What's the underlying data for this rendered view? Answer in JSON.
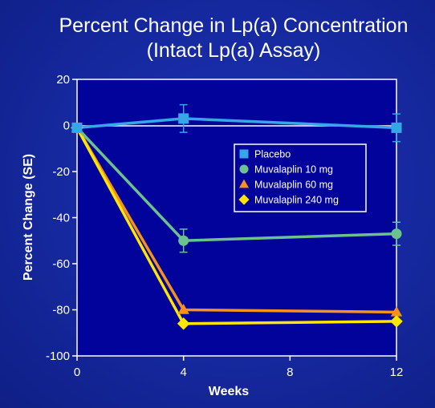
{
  "chart_data": {
    "type": "line",
    "title": "Percent Change in Lp(a) Concentration",
    "subtitle": "(Intact Lp(a) Assay)",
    "xlabel": "Weeks",
    "ylabel": "Percent Change (SE)",
    "xlim": [
      0,
      12
    ],
    "ylim": [
      -100,
      20
    ],
    "xticks": [
      0,
      4,
      8,
      12
    ],
    "yticks": [
      20,
      0,
      -20,
      -40,
      -60,
      -80,
      -100
    ],
    "grid": false,
    "legend_position": "top-right",
    "series": [
      {
        "name": "Placebo",
        "marker": "square",
        "color": "#36a6e8",
        "x": [
          0,
          4,
          12
        ],
        "y": [
          -1,
          3,
          -1
        ],
        "error": [
          0,
          6,
          6
        ]
      },
      {
        "name": "Muvalaplin 10 mg",
        "marker": "circle",
        "color": "#6cc28e",
        "x": [
          0,
          4,
          12
        ],
        "y": [
          -1,
          -50,
          -47
        ],
        "error": [
          0,
          5,
          5
        ]
      },
      {
        "name": "Muvalaplin 60 mg",
        "marker": "triangle",
        "color": "#f5921e",
        "x": [
          0,
          4,
          12
        ],
        "y": [
          -1,
          -80,
          -81
        ],
        "error": [
          0,
          0,
          0
        ]
      },
      {
        "name": "Muvalaplin 240 mg",
        "marker": "diamond",
        "color": "#ffe600",
        "x": [
          0,
          4,
          12
        ],
        "y": [
          -1,
          -86,
          -85
        ],
        "error": [
          0,
          0,
          0
        ]
      }
    ]
  }
}
